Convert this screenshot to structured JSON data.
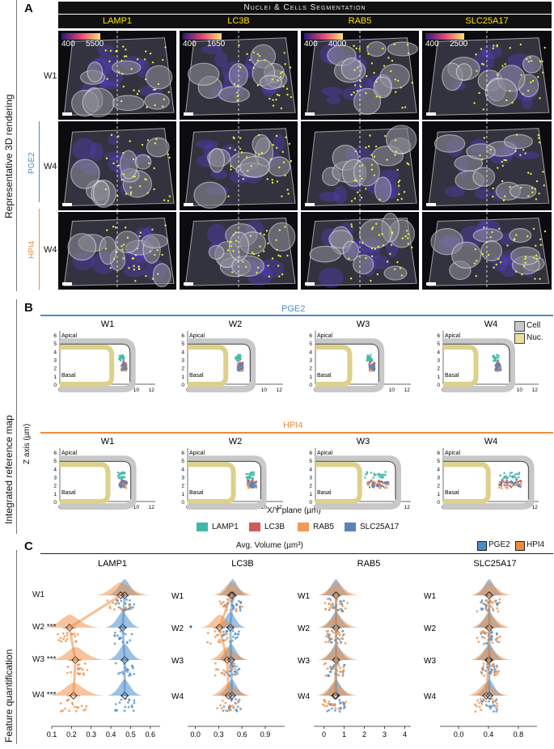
{
  "panelA": {
    "letter": "A",
    "side_label": "Representative 3D rendering",
    "header": "Nuclei & Cells Segmentation",
    "channels": [
      {
        "name": "LAMP1",
        "cmin": "400",
        "cmax": "5500"
      },
      {
        "name": "LC3B",
        "cmin": "400",
        "cmax": "1650"
      },
      {
        "name": "RAB5",
        "cmin": "400",
        "cmax": "4000"
      },
      {
        "name": "SLC25A17",
        "cmin": "400",
        "cmax": "2500"
      }
    ],
    "rows": [
      {
        "label": "W1",
        "group": ""
      },
      {
        "label": "W4",
        "group": "PGE2"
      },
      {
        "label": "W4",
        "group": "HPI4"
      }
    ]
  },
  "panelB": {
    "letter": "B",
    "side_label": "Integrated reference map",
    "group1": "PGE2",
    "group2": "HPI4",
    "weeks": [
      "W1",
      "W2",
      "W3",
      "W4"
    ],
    "apical": "Apical",
    "basal": "Basal",
    "ylabel": "Z axis (µm)",
    "xlabel": "X/Y plane (µm)",
    "legend_cell": "Cell",
    "legend_nuc": "Nuc.",
    "markers": [
      {
        "name": "LAMP1",
        "color": "#3fb8a8"
      },
      {
        "name": "LC3B",
        "color": "#cf5a5a"
      },
      {
        "name": "RAB5",
        "color": "#ef9a56"
      },
      {
        "name": "SLC25A17",
        "color": "#5b83b8"
      }
    ]
  },
  "panelC": {
    "letter": "C",
    "side_label": "Feature quantification",
    "title": "Avg. Volume (µm³)",
    "legend": [
      {
        "name": "PGE2",
        "color": "#4b8ccb"
      },
      {
        "name": "HPI4",
        "color": "#ef8a3c"
      }
    ],
    "weeks": [
      "W1",
      "W2",
      "W3",
      "W4"
    ]
  },
  "chart_data": [
    {
      "type": "scatter",
      "title": "LAMP1",
      "xlabel": "Avg. Volume (µm³)",
      "ticks": [
        "0.1",
        "0.2",
        "0.3",
        "0.4",
        "0.5",
        "0.6"
      ],
      "xlim": [
        0.1,
        0.65
      ],
      "categories": [
        "W1",
        "W2",
        "W3",
        "W4"
      ],
      "significance": [
        "",
        "***",
        "***",
        "***"
      ],
      "series": [
        {
          "name": "PGE2",
          "values": [
            0.47,
            0.46,
            0.47,
            0.47
          ]
        },
        {
          "name": "HPI4",
          "values": [
            0.45,
            0.19,
            0.22,
            0.21
          ]
        }
      ]
    },
    {
      "type": "scatter",
      "title": "LC3B",
      "xlabel": "Avg. Volume (µm³)",
      "ticks": [
        "0.0",
        "0.3",
        "0.6",
        "0.9"
      ],
      "xlim": [
        -0.1,
        1.15
      ],
      "categories": [
        "W1",
        "W2",
        "W3",
        "W4"
      ],
      "significance": [
        "",
        "*",
        "",
        ""
      ],
      "series": [
        {
          "name": "PGE2",
          "values": [
            0.48,
            0.45,
            0.46,
            0.47
          ]
        },
        {
          "name": "HPI4",
          "values": [
            0.46,
            0.31,
            0.41,
            0.43
          ]
        }
      ]
    },
    {
      "type": "scatter",
      "title": "RAB5",
      "xlabel": "Avg. Volume (µm³)",
      "ticks": [
        "0",
        "1",
        "2",
        "3",
        "4"
      ],
      "xlim": [
        -0.5,
        4.3
      ],
      "categories": [
        "W1",
        "W2",
        "W3",
        "W4"
      ],
      "significance": [
        "",
        "",
        "",
        ""
      ],
      "series": [
        {
          "name": "PGE2",
          "values": [
            0.6,
            0.6,
            0.6,
            0.6
          ]
        },
        {
          "name": "HPI4",
          "values": [
            0.6,
            0.6,
            0.6,
            0.55
          ]
        }
      ]
    },
    {
      "type": "scatter",
      "title": "SLC25A17",
      "xlabel": "Avg. Volume (µm³)",
      "ticks": [
        "0.0",
        "0.4",
        "0.8"
      ],
      "xlim": [
        -0.25,
        1.05
      ],
      "categories": [
        "W1",
        "W2",
        "W3",
        "W4"
      ],
      "significance": [
        "",
        "",
        "",
        ""
      ],
      "series": [
        {
          "name": "PGE2",
          "values": [
            0.41,
            0.41,
            0.41,
            0.41
          ]
        },
        {
          "name": "HPI4",
          "values": [
            0.41,
            0.41,
            0.4,
            0.37
          ]
        }
      ]
    }
  ]
}
